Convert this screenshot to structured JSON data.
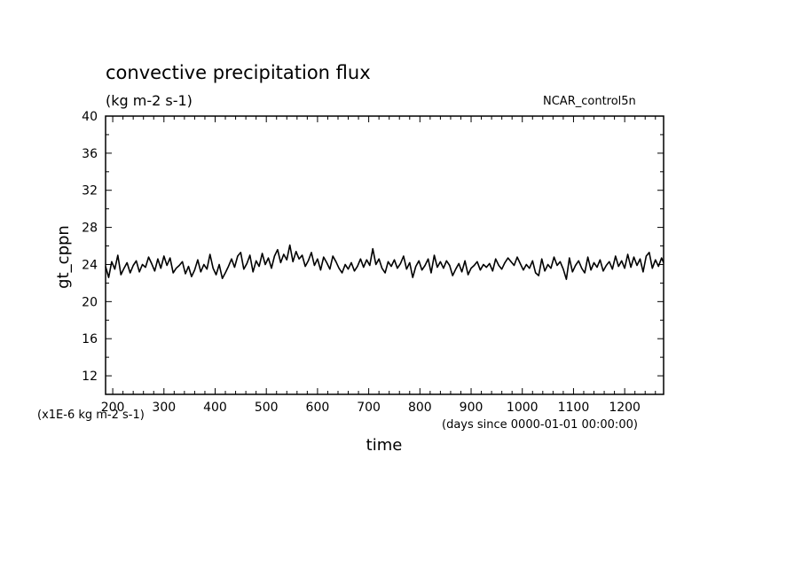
{
  "chart_data": {
    "type": "line",
    "title": "convective precipitation flux",
    "subtitle": "(kg m-2 s-1)",
    "source_label": "NCAR_control5n",
    "xlabel": "time",
    "x_units": "(days since 0000-01-01 00:00:00)",
    "ylabel": "gt_cppn",
    "y_scale_label": "(x1E-6 kg m-2 s-1)",
    "xlim": [
      186,
      1276
    ],
    "ylim": [
      10,
      40
    ],
    "x_ticks": [
      200,
      300,
      400,
      500,
      600,
      700,
      800,
      900,
      1000,
      1100,
      1200
    ],
    "y_ticks": [
      12,
      16,
      20,
      24,
      28,
      32,
      36,
      40
    ],
    "grid": false,
    "line_color": "#000000",
    "series": [
      {
        "x": [
          186,
          192,
          198,
          204,
          210,
          216,
          222,
          228,
          234,
          240,
          246,
          252,
          258,
          264,
          270,
          276,
          282,
          288,
          294,
          300,
          306,
          312,
          318,
          324,
          330,
          336,
          342,
          348,
          354,
          360,
          366,
          372,
          378,
          384,
          390,
          396,
          402,
          408,
          414,
          420,
          426,
          432,
          438,
          444,
          450,
          456,
          462,
          468,
          474,
          480,
          486,
          492,
          498,
          504,
          510,
          516,
          522,
          528,
          534,
          540,
          546,
          552,
          558,
          564,
          570,
          576,
          582,
          588,
          594,
          600,
          606,
          612,
          618,
          624,
          630,
          636,
          642,
          648,
          654,
          660,
          666,
          672,
          678,
          684,
          690,
          696,
          702,
          708,
          714,
          720,
          726,
          732,
          738,
          744,
          750,
          756,
          762,
          768,
          774,
          780,
          786,
          792,
          798,
          804,
          810,
          816,
          822,
          828,
          834,
          840,
          846,
          852,
          858,
          864,
          870,
          876,
          882,
          888,
          894,
          900,
          906,
          912,
          918,
          924,
          930,
          936,
          942,
          948,
          954,
          960,
          966,
          972,
          978,
          984,
          990,
          996,
          1002,
          1008,
          1014,
          1020,
          1026,
          1032,
          1038,
          1044,
          1050,
          1056,
          1062,
          1068,
          1074,
          1080,
          1086,
          1092,
          1098,
          1104,
          1110,
          1116,
          1122,
          1128,
          1134,
          1140,
          1146,
          1152,
          1158,
          1164,
          1170,
          1176,
          1182,
          1188,
          1194,
          1200,
          1206,
          1212,
          1218,
          1224,
          1230,
          1236,
          1242,
          1248,
          1254,
          1260,
          1266,
          1272,
          1276
        ],
        "y": [
          23.8,
          22.6,
          24.3,
          23.5,
          25.0,
          22.9,
          23.6,
          24.2,
          23.1,
          23.9,
          24.4,
          23.2,
          24.0,
          23.7,
          24.8,
          24.1,
          23.3,
          24.6,
          23.6,
          24.9,
          23.9,
          24.7,
          23.1,
          23.6,
          23.9,
          24.3,
          23.0,
          23.8,
          22.7,
          23.4,
          24.5,
          23.2,
          24.0,
          23.5,
          25.1,
          23.6,
          22.9,
          24.0,
          22.5,
          23.1,
          23.8,
          24.6,
          23.7,
          24.9,
          25.3,
          23.5,
          24.1,
          25.0,
          23.2,
          24.4,
          23.8,
          25.2,
          24.0,
          24.7,
          23.6,
          24.9,
          25.6,
          24.2,
          25.1,
          24.5,
          26.1,
          24.3,
          25.4,
          24.6,
          25.0,
          23.8,
          24.4,
          25.3,
          23.9,
          24.6,
          23.4,
          24.8,
          24.2,
          23.5,
          24.9,
          24.3,
          23.6,
          23.1,
          24.0,
          23.5,
          24.2,
          23.3,
          23.8,
          24.6,
          23.7,
          24.5,
          23.9,
          25.7,
          24.0,
          24.6,
          23.6,
          23.1,
          24.3,
          23.8,
          24.5,
          23.6,
          24.1,
          24.9,
          23.5,
          24.2,
          22.6,
          23.8,
          24.4,
          23.4,
          23.9,
          24.6,
          23.1,
          25.0,
          23.7,
          24.3,
          23.6,
          24.4,
          23.9,
          22.8,
          23.5,
          24.1,
          23.2,
          24.4,
          22.9,
          23.6,
          23.9,
          24.3,
          23.4,
          24.0,
          23.7,
          24.1,
          23.3,
          24.6,
          23.9,
          23.5,
          24.2,
          24.7,
          24.3,
          23.9,
          24.8,
          24.1,
          23.4,
          24.0,
          23.6,
          24.4,
          23.1,
          22.8,
          24.6,
          23.3,
          24.0,
          23.6,
          24.8,
          23.9,
          24.3,
          23.5,
          22.4,
          24.7,
          23.2,
          23.9,
          24.4,
          23.6,
          23.1,
          24.8,
          23.4,
          24.2,
          23.7,
          24.5,
          23.3,
          23.9,
          24.3,
          23.5,
          24.9,
          23.8,
          24.4,
          23.6,
          25.1,
          23.7,
          24.8,
          23.9,
          24.6,
          23.2,
          24.9,
          25.3,
          23.6,
          24.5,
          23.8,
          24.7,
          24.2
        ]
      }
    ]
  }
}
